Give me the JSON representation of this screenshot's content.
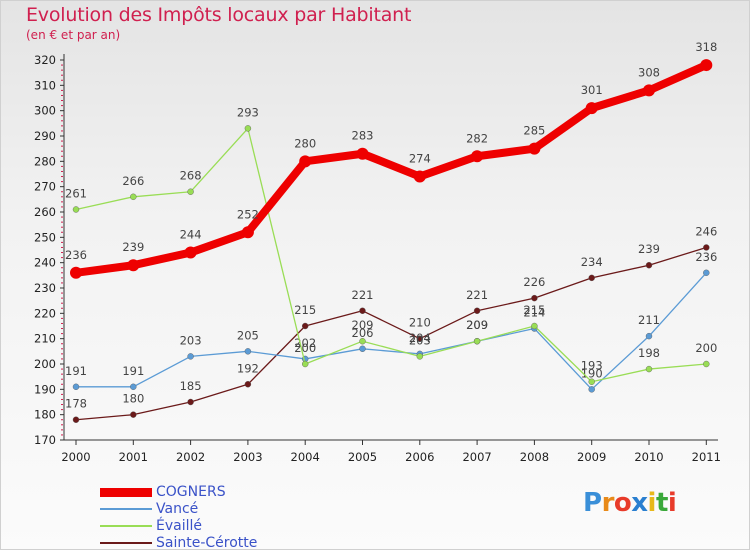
{
  "title": "Evolution des Impôts locaux par Habitant",
  "subtitle": "(en € et par an)",
  "logo": {
    "letters": [
      "P",
      "r",
      "o",
      "x",
      "i",
      "t",
      "i"
    ],
    "colors": [
      "#3a8fd8",
      "#e88a1a",
      "#e83b2a",
      "#2a7fd0",
      "#e8b81a",
      "#3aa83a",
      "#e83b2a"
    ]
  },
  "chart_data": {
    "type": "line",
    "x": [
      "2000",
      "2001",
      "2002",
      "2003",
      "2004",
      "2005",
      "2006",
      "2007",
      "2008",
      "2009",
      "2010",
      "2011"
    ],
    "ylim": [
      170,
      320
    ],
    "yticks": [
      170,
      180,
      190,
      200,
      210,
      220,
      230,
      240,
      250,
      260,
      270,
      280,
      290,
      300,
      310,
      320
    ],
    "grid": false,
    "series": [
      {
        "name": "COGNERS",
        "color": "#ee0000",
        "values": [
          236,
          239,
          244,
          252,
          280,
          283,
          274,
          282,
          285,
          301,
          308,
          318
        ]
      },
      {
        "name": "Vancé",
        "color": "#5b9bd5",
        "values": [
          191,
          191,
          203,
          205,
          202,
          206,
          204,
          209,
          214,
          190,
          211,
          236
        ]
      },
      {
        "name": "Évaillé",
        "color": "#99dd55",
        "values": [
          261,
          266,
          268,
          293,
          200,
          209,
          203,
          209,
          215,
          193,
          198,
          200
        ]
      },
      {
        "name": "Sainte-Cérotte",
        "color": "#6b1a1a",
        "values": [
          178,
          180,
          185,
          192,
          215,
          221,
          210,
          221,
          226,
          234,
          239,
          246
        ]
      }
    ],
    "data_labels": [
      {
        "series": 0,
        "labels": [
          "236",
          "239",
          "244",
          "252",
          "280",
          "283",
          "274",
          "282",
          "285",
          "301",
          "308",
          "318"
        ]
      },
      {
        "series": 1,
        "labels": [
          "191",
          "191",
          "203",
          "205",
          "202",
          "206",
          "204",
          "209",
          "214",
          "190",
          "211",
          "236"
        ]
      },
      {
        "series": 2,
        "labels": [
          "261",
          "266",
          "268",
          "293",
          "200",
          "209",
          "203",
          "209",
          "215",
          "193",
          "198",
          "200"
        ]
      },
      {
        "series": 3,
        "labels": [
          "178",
          "180",
          "185",
          "192",
          "215",
          "221",
          "210",
          "221",
          "226",
          "234",
          "239",
          "246"
        ]
      }
    ]
  }
}
